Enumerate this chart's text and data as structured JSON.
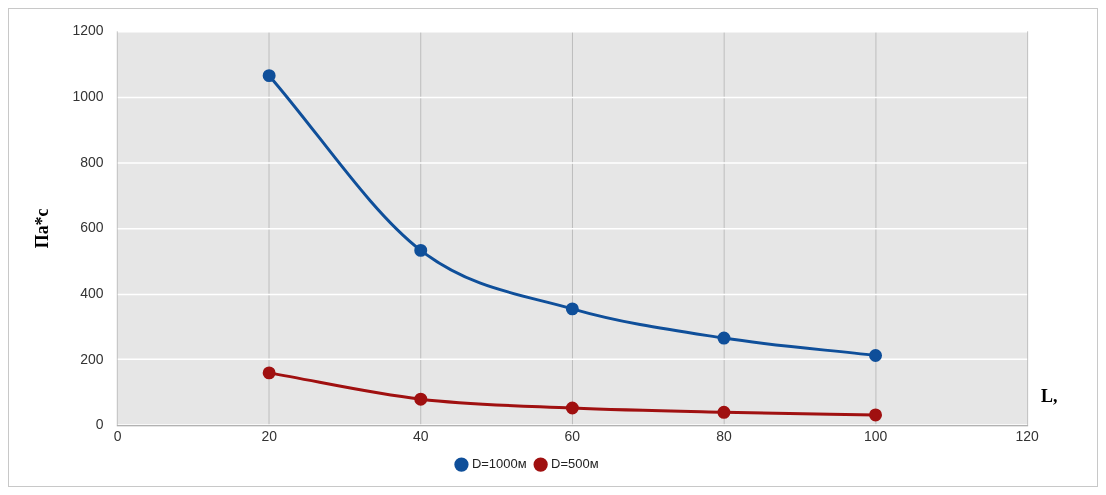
{
  "chart_data": {
    "type": "line",
    "xlabel": "L,",
    "ylabel": "Па*с",
    "x": [
      20,
      40,
      60,
      80,
      100
    ],
    "series": [
      {
        "name": "D=1000м",
        "color": "#0f4f9a",
        "values": [
          1065,
          533,
          355,
          266,
          213
        ]
      },
      {
        "name": "D=500м",
        "color": "#a01010",
        "values": [
          160,
          80,
          53,
          40,
          32
        ]
      }
    ],
    "xlim": [
      0,
      120
    ],
    "xticks": [
      0,
      20,
      40,
      60,
      80,
      100,
      120
    ],
    "ylim": [
      0,
      1200
    ],
    "yticks": [
      0,
      200,
      400,
      600,
      800,
      1000,
      1200
    ],
    "grid": true,
    "legend": "bottom",
    "marker": "circle",
    "line_style": "solid"
  }
}
